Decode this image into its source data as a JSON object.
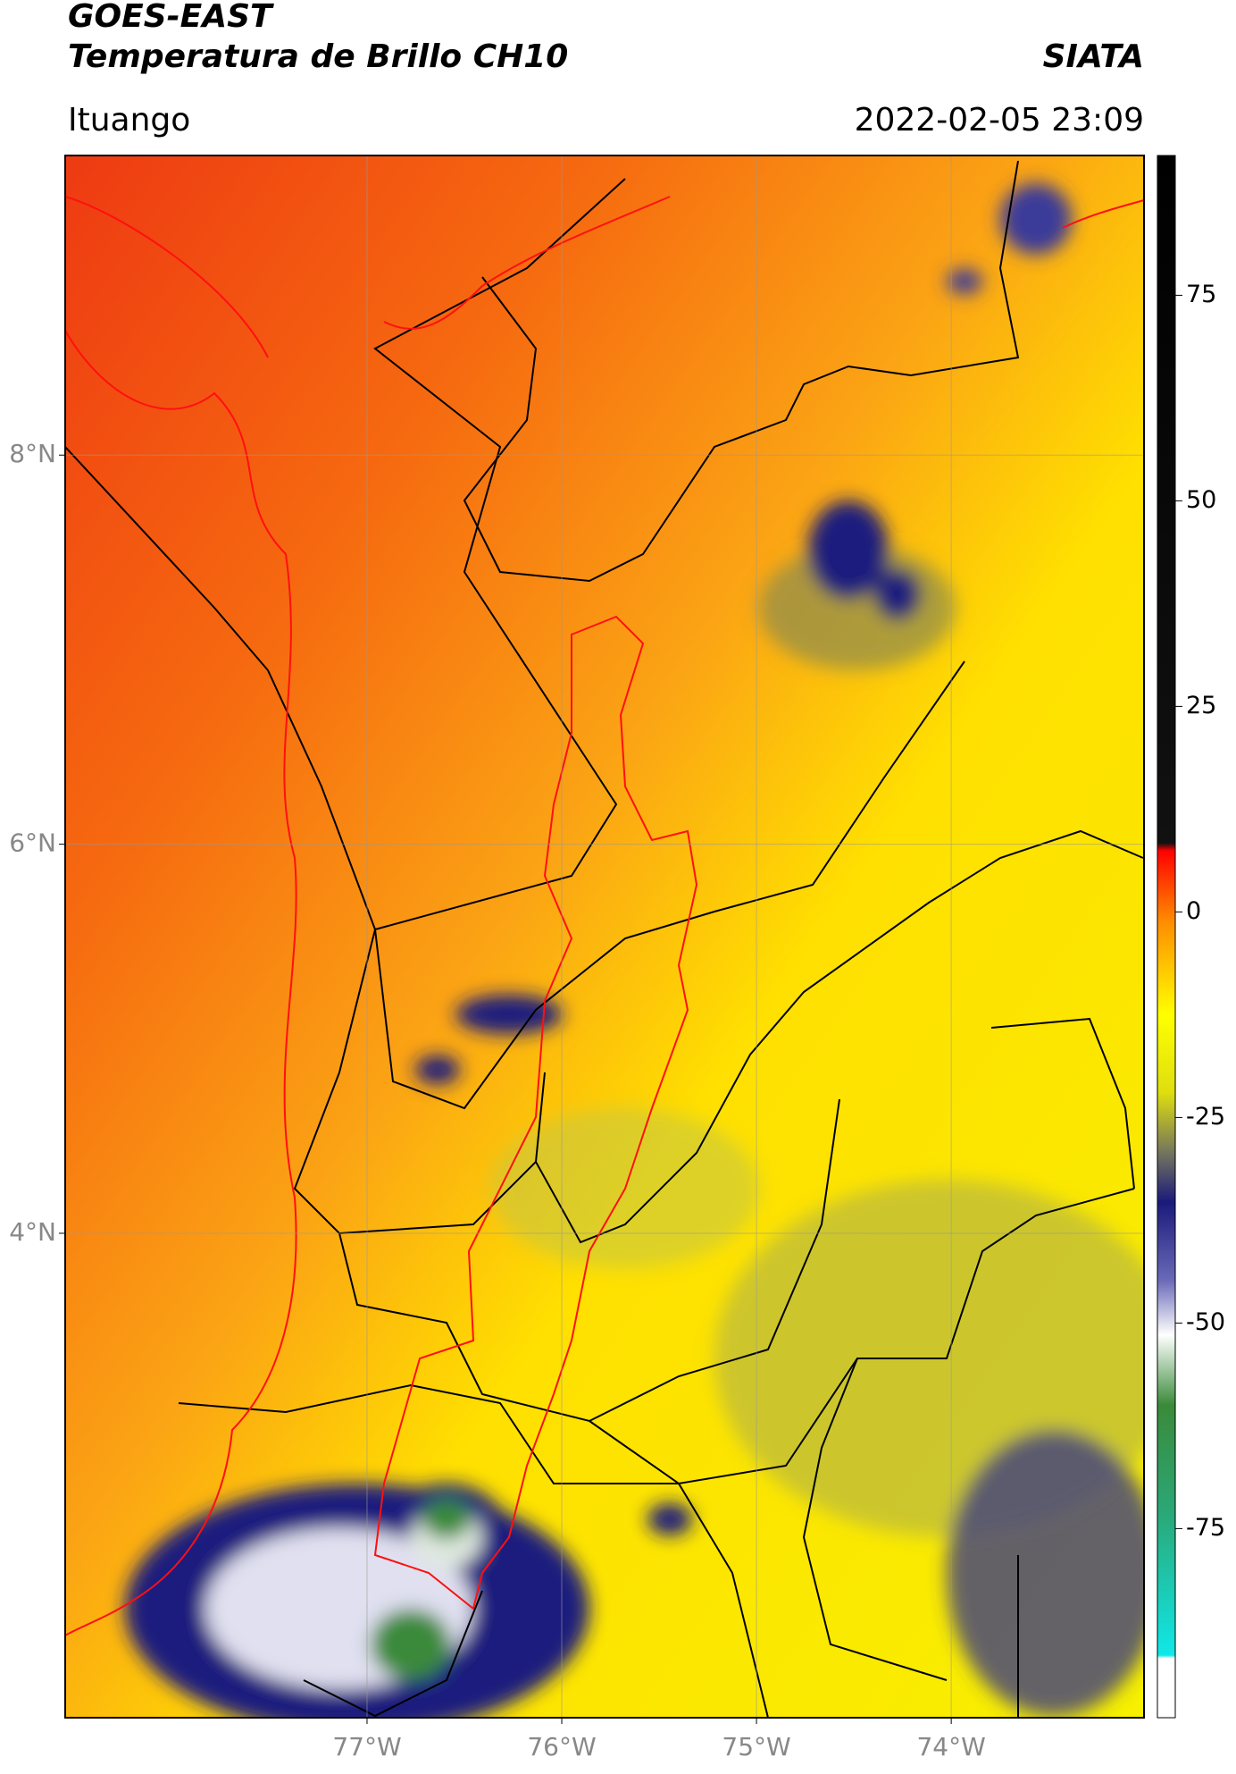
{
  "header": {
    "title": "GOES-EAST",
    "subtitle": "Temperatura de Brillo CH10",
    "source": "SIATA",
    "location": "Ituango",
    "datetime": "2022-02-05 23:09"
  },
  "map": {
    "lat_range": [
      1.51,
      9.54
    ],
    "lon_range": [
      -78.55,
      -73.01
    ],
    "lat_ticks": [
      {
        "value": 8,
        "label": "8°N"
      },
      {
        "value": 6,
        "label": "6°N"
      },
      {
        "value": 4,
        "label": "4°N"
      }
    ],
    "lon_ticks": [
      {
        "value": -77,
        "label": "77°W"
      },
      {
        "value": -76,
        "label": "76°W"
      },
      {
        "value": -75,
        "label": "75°W"
      },
      {
        "value": -74,
        "label": "74°W"
      }
    ]
  },
  "colorbar": {
    "range": [
      -98,
      92
    ],
    "ticks": [
      75,
      50,
      25,
      0,
      -25,
      -50,
      -75
    ]
  }
}
